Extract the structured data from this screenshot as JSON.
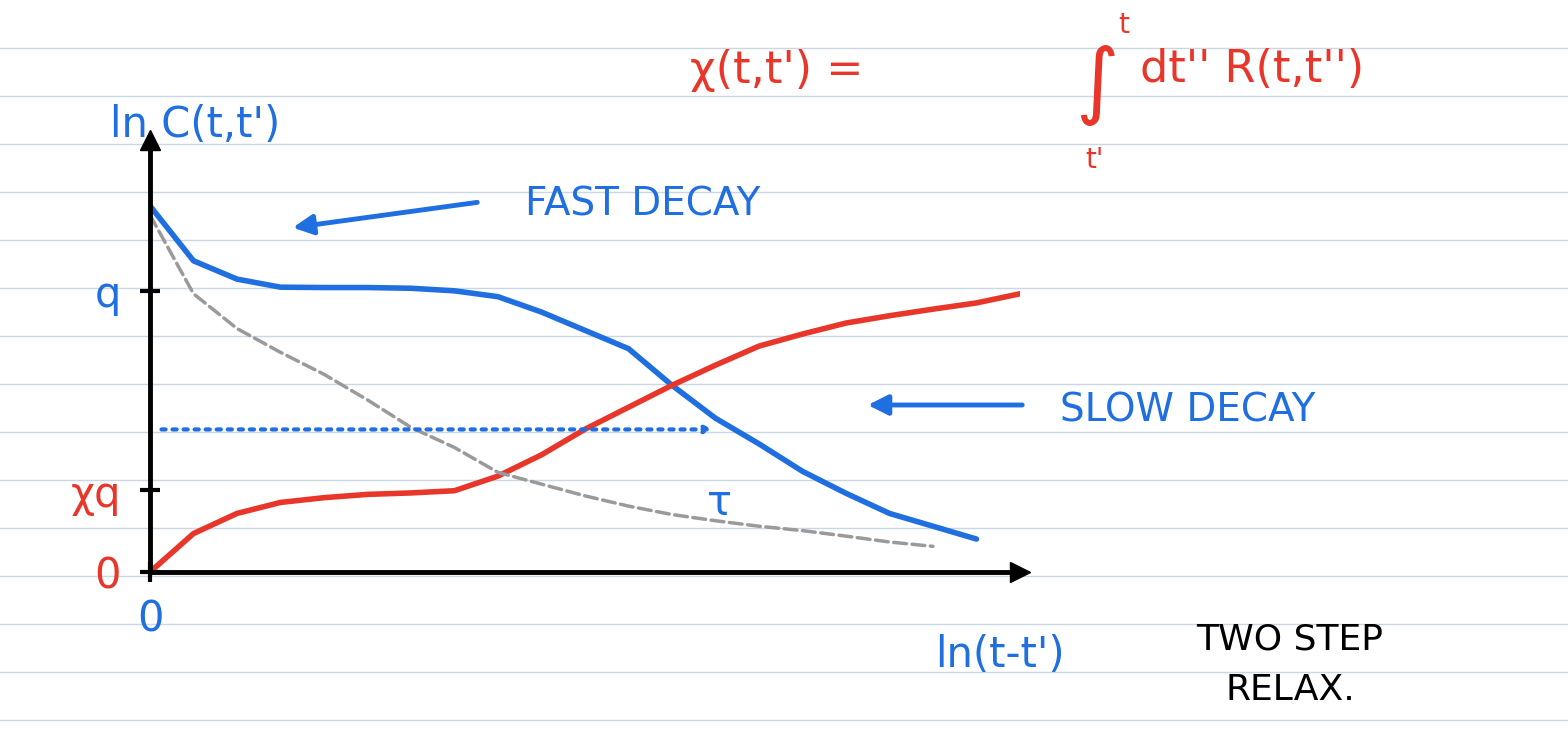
{
  "chart_data": {
    "type": "line",
    "y_label": "ln C(t,t')",
    "x_label": "ln(t-t')",
    "formula": {
      "lhs": "χ(t,t') =",
      "integral": "∫",
      "lower": "t'",
      "upper": "t",
      "integrand": "dt'' R(t,t'')"
    },
    "annotations": {
      "fast": "FAST DECAY",
      "slow": "SLOW DECAY",
      "tau": "τ",
      "caption": "TWO STEP\nRELAX."
    },
    "x": [
      0,
      0.5,
      1,
      1.5,
      2,
      2.5,
      3,
      3.5,
      4,
      4.5,
      5,
      5.5,
      6,
      6.5,
      7,
      7.5,
      8,
      8.5,
      9,
      9.5,
      10
    ],
    "series": [
      {
        "color": "#1f6fe0",
        "line_style": "solid",
        "values": [
          1.0,
          0.85,
          0.8,
          0.778,
          0.777,
          0.777,
          0.775,
          0.768,
          0.752,
          0.71,
          0.66,
          0.61,
          0.51,
          0.42,
          0.35,
          0.275,
          0.215,
          0.16,
          0.125,
          0.09,
          null
        ]
      },
      {
        "color": "#e8372a",
        "line_style": "solid",
        "values": [
          0.0,
          0.105,
          0.16,
          0.19,
          0.203,
          0.212,
          0.216,
          0.222,
          0.262,
          0.32,
          0.39,
          0.45,
          0.51,
          0.565,
          0.617,
          0.65,
          0.68,
          0.7,
          0.718,
          0.735,
          0.76
        ]
      },
      {
        "color": "#9a9a9a",
        "line_style": "dashed",
        "values": [
          0.975,
          0.76,
          0.665,
          0.6,
          0.54,
          0.47,
          0.395,
          0.34,
          0.272,
          0.24,
          0.208,
          0.18,
          0.157,
          0.14,
          0.125,
          0.113,
          0.098,
          0.082,
          0.07,
          null,
          null
        ]
      }
    ],
    "xlim": [
      0,
      10
    ],
    "ylim": [
      0,
      1.18
    ],
    "xticks": [
      0
    ],
    "yticks": [
      0,
      {
        "value": 0.768,
        "label": "q"
      },
      {
        "value": 0.223,
        "label": "χq"
      }
    ]
  }
}
